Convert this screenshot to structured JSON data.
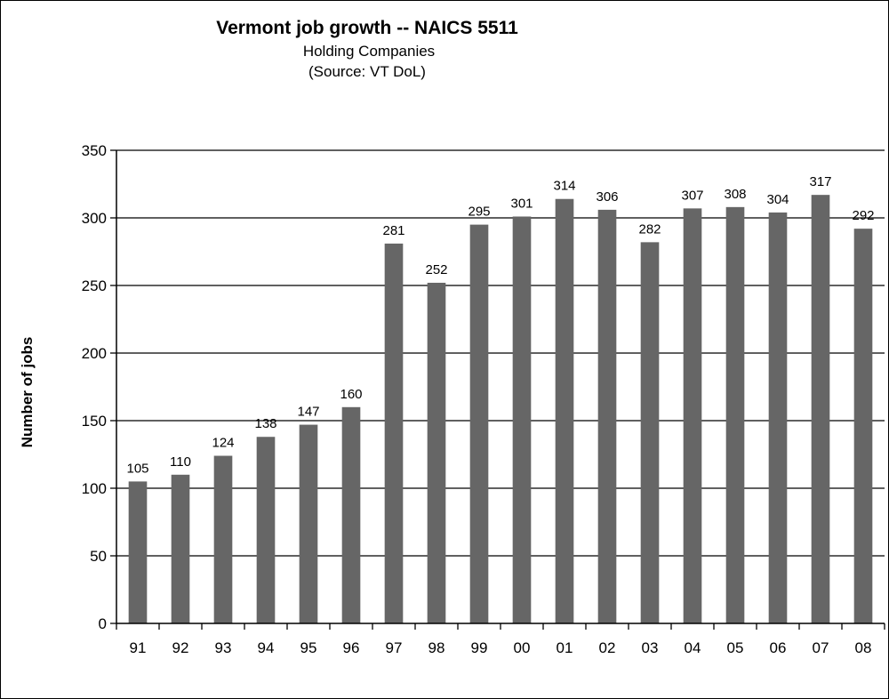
{
  "chart_data": {
    "type": "bar",
    "title": "Vermont job growth -- NAICS 5511",
    "subtitle": "Holding Companies",
    "source": "(Source: VT DoL)",
    "xlabel": "",
    "ylabel": "Number of jobs",
    "categories": [
      "91",
      "92",
      "93",
      "94",
      "95",
      "96",
      "97",
      "98",
      "99",
      "00",
      "01",
      "02",
      "03",
      "04",
      "05",
      "06",
      "07",
      "08"
    ],
    "values": [
      105,
      110,
      124,
      138,
      147,
      160,
      281,
      252,
      295,
      301,
      314,
      306,
      282,
      307,
      308,
      304,
      317,
      292
    ],
    "ylim": [
      0,
      350
    ],
    "yticks": [
      0,
      50,
      100,
      150,
      200,
      250,
      300,
      350
    ],
    "grid": true,
    "legend": "none",
    "bar_color": "#666666"
  }
}
